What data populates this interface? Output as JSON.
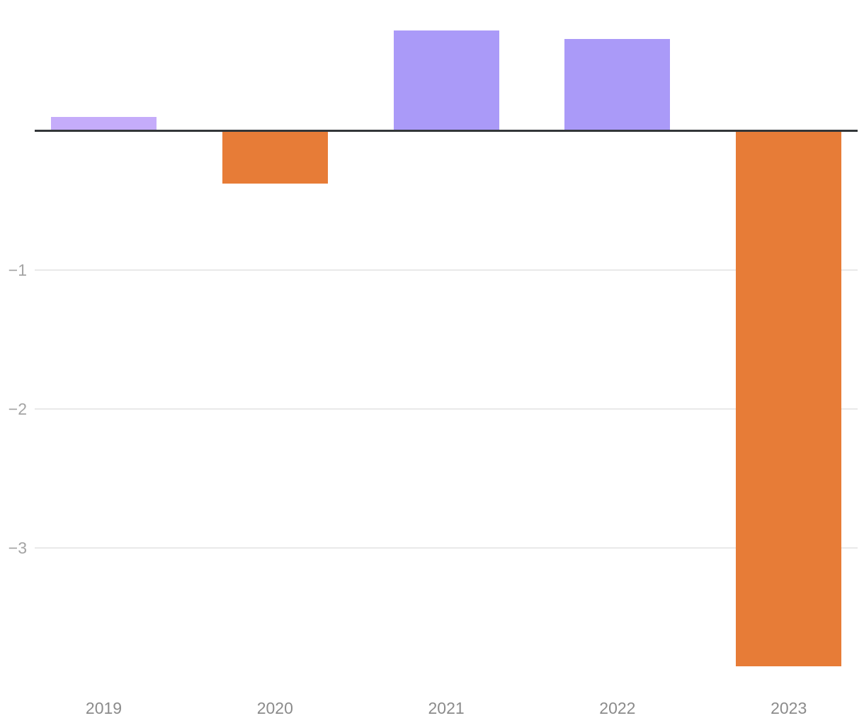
{
  "chart_data": {
    "type": "bar",
    "title": "",
    "xlabel": "",
    "ylabel": "",
    "categories": [
      "2019",
      "2020",
      "2021",
      "2022",
      "2023"
    ],
    "values": [
      0.1,
      -0.38,
      0.72,
      0.66,
      -3.85
    ],
    "bar_colors": [
      "#c5acfa",
      "#e77c37",
      "#aa9af8",
      "#aa9af8",
      "#e77c37"
    ],
    "yticks": [
      -1,
      -2,
      -3
    ],
    "ytick_labels": [
      "−1",
      "−2",
      "−3"
    ],
    "ylim": [
      -4.26,
      0.94
    ],
    "grid": true,
    "legend": false,
    "zero_baseline": true,
    "colors": {
      "positive": "#aa9af8",
      "positive_light": "#c5acfa",
      "negative": "#e77c37",
      "axis_line": "#333639",
      "gridline": "#e9e9e9",
      "y_tick_label": "#a4a4a4",
      "x_tick_label": "#8b8b8b"
    }
  }
}
